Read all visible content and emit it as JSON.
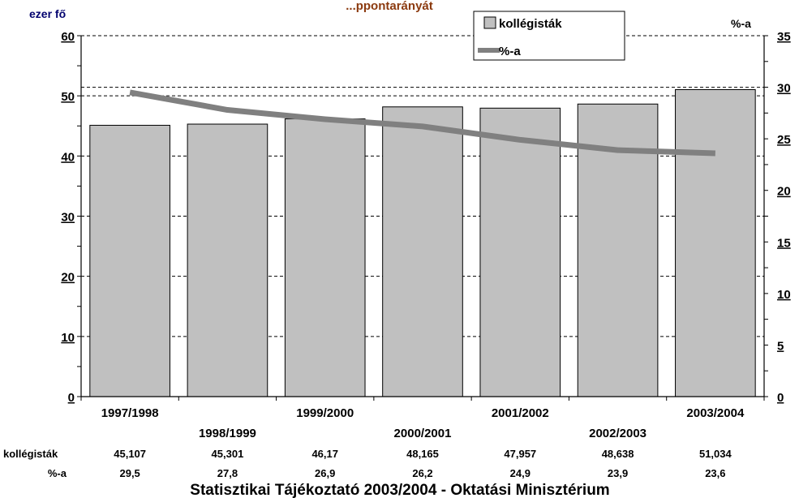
{
  "chart_data": {
    "type": "bar",
    "title": "...ppontarányát",
    "categories": [
      "1997/1998",
      "1998/1999",
      "1999/2000",
      "2000/2001",
      "2001/2002",
      "2002/2003",
      "2003/2004"
    ],
    "series": [
      {
        "name": "kollégisták",
        "type": "bar",
        "axis": "left",
        "values": [
          45.107,
          45.301,
          46.17,
          48.165,
          47.957,
          48.638,
          51.034
        ],
        "labels": [
          "45,107",
          "45,301",
          "46,17",
          "48,165",
          "47,957",
          "48,638",
          "51,034"
        ]
      },
      {
        "name": "%-a",
        "type": "line",
        "axis": "right",
        "values": [
          29.5,
          27.8,
          26.9,
          26.2,
          24.9,
          23.9,
          23.6
        ],
        "labels": [
          "29,5",
          "27,8",
          "26,9",
          "26,2",
          "24,9",
          "23,9",
          "23,6"
        ]
      }
    ],
    "ylabel_left": "ezer fő",
    "ylabel_right": "%-a",
    "ylim_left": [
      0,
      60
    ],
    "ylim_right": [
      0,
      35
    ],
    "yticks_left": [
      0,
      10,
      20,
      30,
      40,
      50,
      60
    ],
    "yticks_right": [
      0,
      5,
      10,
      15,
      20,
      25,
      30,
      35
    ],
    "table_row_labels": [
      "kollégisták",
      "%-a"
    ],
    "legend_position": "top-right",
    "grid": "dashed-horizontal",
    "colors": {
      "bar_fill": "#c0c0c0",
      "line": "#808080",
      "title": "#8b3a0f",
      "unit_left": "#00006e"
    }
  },
  "footer": "Statisztikai Tájékoztató 2003/2004 - Oktatási Minisztérium"
}
